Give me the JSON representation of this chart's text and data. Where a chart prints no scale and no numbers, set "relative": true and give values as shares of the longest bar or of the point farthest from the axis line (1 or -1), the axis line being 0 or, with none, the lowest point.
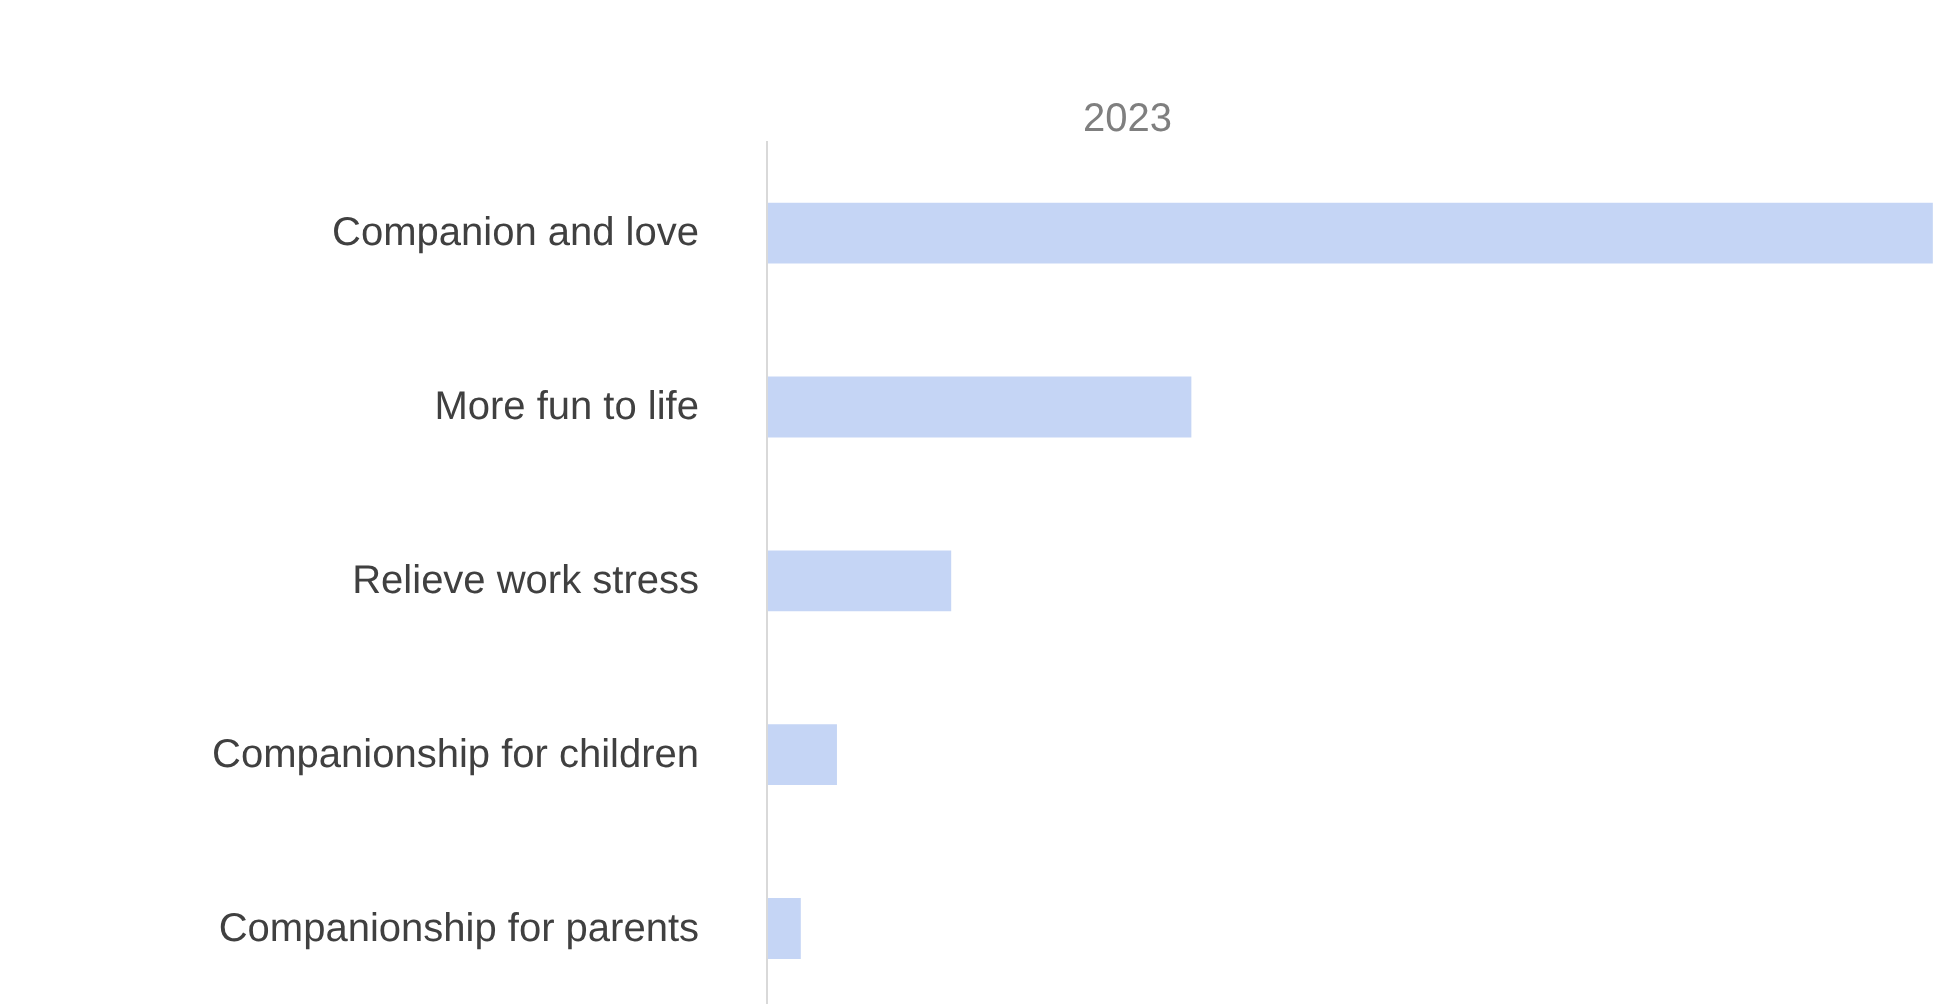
{
  "chart_data": {
    "type": "bar",
    "orientation": "horizontal",
    "relative": true,
    "title": "2023",
    "categories": [
      "Companion and love",
      "More fun to life",
      "Relieve work stress",
      "Companionship for children",
      "Companionship for parents"
    ],
    "values": [
      1,
      0.364,
      0.158,
      0.06,
      0.029
    ],
    "color": "#c5d5f5"
  }
}
